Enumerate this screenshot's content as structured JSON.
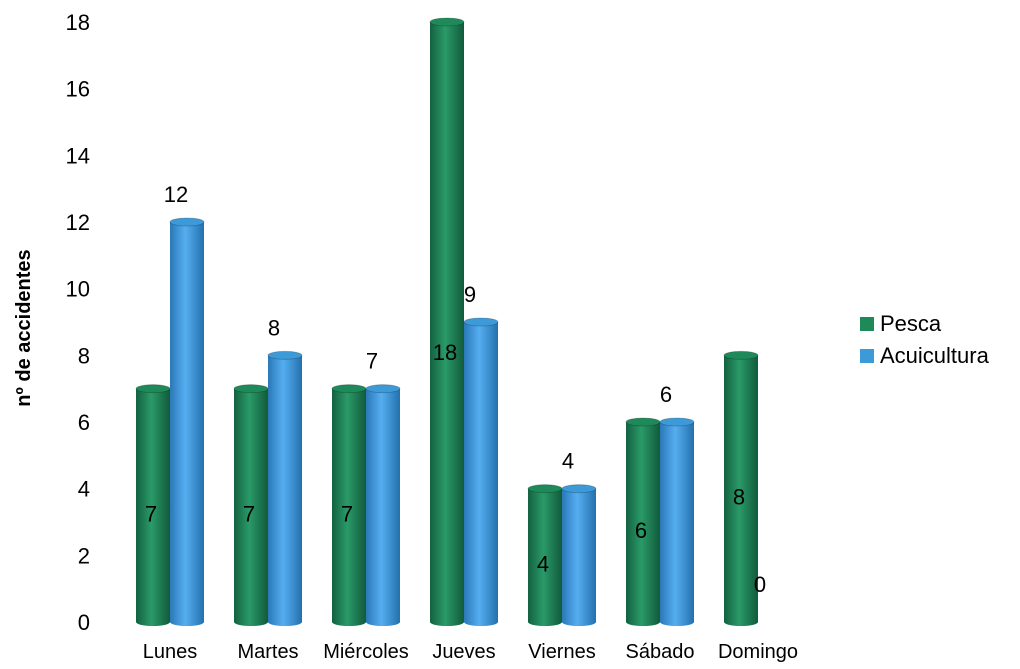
{
  "chart_data": {
    "type": "bar",
    "title": "",
    "xlabel": "",
    "ylabel": "nº de accidentes",
    "categories": [
      "Lunes",
      "Martes",
      "Miércoles",
      "Jueves",
      "Viernes",
      "Sábado",
      "Domingo"
    ],
    "series": [
      {
        "name": "Pesca",
        "values": [
          7,
          7,
          7,
          18,
          4,
          6,
          8
        ]
      },
      {
        "name": "Acuicultura",
        "values": [
          12,
          8,
          7,
          9,
          4,
          6,
          0
        ]
      }
    ],
    "ylim": [
      0,
      18
    ],
    "yticks": [
      "0",
      "2",
      "4",
      "6",
      "8",
      "10",
      "12",
      "14",
      "16",
      "18"
    ],
    "grid": false,
    "legend_position": "right",
    "colors": {
      "Pesca": "#1e8a5a",
      "Acuicultura": "#3d9ad9"
    }
  }
}
